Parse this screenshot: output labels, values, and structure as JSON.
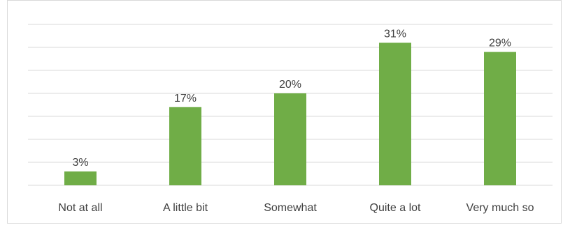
{
  "chart_data": {
    "type": "bar",
    "title": "",
    "xlabel": "",
    "ylabel": "",
    "categories": [
      "Not at all",
      "A little bit",
      "Somewhat",
      "Quite a lot",
      "Very much so"
    ],
    "values": [
      3,
      17,
      20,
      31,
      29
    ],
    "data_labels": [
      "3%",
      "17%",
      "20%",
      "31%",
      "29%"
    ],
    "ylim": [
      0,
      35
    ],
    "grid": true,
    "legend": "none",
    "bar_color": "#70ad47"
  }
}
